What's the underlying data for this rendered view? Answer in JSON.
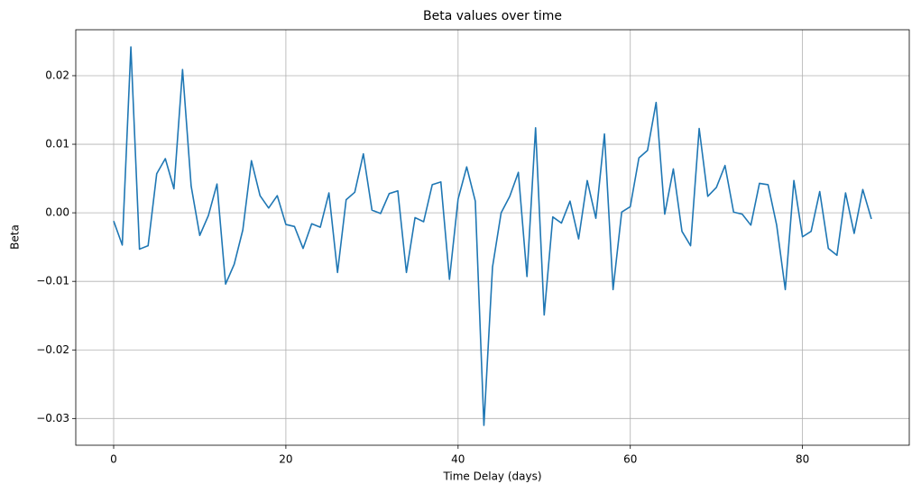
{
  "chart_data": {
    "type": "line",
    "title": "Beta values over time",
    "xlabel": "Time Delay (days)",
    "ylabel": "Beta",
    "x": [
      0,
      1,
      2,
      3,
      4,
      5,
      6,
      7,
      8,
      9,
      10,
      11,
      12,
      13,
      14,
      15,
      16,
      17,
      18,
      19,
      20,
      21,
      22,
      23,
      24,
      25,
      26,
      27,
      28,
      29,
      30,
      31,
      32,
      33,
      34,
      35,
      36,
      37,
      38,
      39,
      40,
      41,
      42,
      43,
      44,
      45,
      46,
      47,
      48,
      49,
      50,
      51,
      52,
      53,
      54,
      55,
      56,
      57,
      58,
      59,
      60,
      61,
      62,
      63,
      64,
      65,
      66,
      67,
      68,
      69,
      70,
      71,
      72,
      73,
      74,
      75,
      76,
      77,
      78,
      79,
      80,
      81,
      82,
      83,
      84,
      85,
      86,
      87,
      88
    ],
    "series": [
      {
        "name": "Beta",
        "color": "#1f77b4",
        "values": [
          -0.0012,
          -0.0047,
          0.0242,
          -0.0053,
          -0.0048,
          0.0057,
          0.0079,
          0.0035,
          0.0209,
          0.0039,
          -0.0033,
          -0.0004,
          0.0042,
          -0.0104,
          -0.0075,
          -0.0025,
          0.0076,
          0.0025,
          0.0007,
          0.0025,
          -0.0017,
          -0.002,
          -0.0052,
          -0.0016,
          -0.0021,
          0.0029,
          -0.0087,
          0.0019,
          0.003,
          0.0086,
          0.0004,
          -0.0001,
          0.0028,
          0.0032,
          -0.0087,
          -0.0007,
          -0.0013,
          0.0041,
          0.0045,
          -0.0097,
          0.002,
          0.0067,
          0.0017,
          -0.031,
          -0.0079,
          0,
          0.0024,
          0.0059,
          -0.0093,
          0.0124,
          -0.0149,
          -0.0006,
          -0.0015,
          0.0017,
          -0.0038,
          0.0047,
          -0.0008,
          0.0115,
          -0.0112,
          0.0001,
          0.0009,
          0.008,
          0.0091,
          0.0161,
          -0.0002,
          0.0064,
          -0.0027,
          -0.0048,
          0.0123,
          0.0024,
          0.0037,
          0.0069,
          0.0001,
          -0.0002,
          -0.0018,
          0.0043,
          0.0041,
          -0.0018,
          -0.0112,
          0.0047,
          -0.0035,
          -0.0027,
          0.0031,
          -0.0052,
          -0.0062,
          0.0029,
          -0.003,
          0.0034,
          -0.0009
        ]
      }
    ],
    "xlim": [
      -4.4,
      92.4
    ],
    "xticks": [
      0,
      20,
      40,
      60,
      80
    ],
    "ylim": [
      -0.0339,
      0.0267
    ],
    "yticks": [
      {
        "value": -0.03,
        "label": "−0.03"
      },
      {
        "value": -0.02,
        "label": "−0.02"
      },
      {
        "value": -0.01,
        "label": "−0.01"
      },
      {
        "value": 0,
        "label": "0.00"
      },
      0.01,
      0.02
    ],
    "grid": true
  }
}
